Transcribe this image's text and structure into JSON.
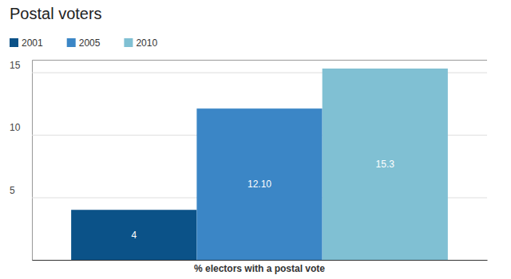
{
  "chart_data": {
    "type": "bar",
    "title": "Postal voters",
    "categories": [
      "% electors with a postal vote"
    ],
    "series": [
      {
        "name": "2001",
        "color": "#0b5288",
        "values": [
          4
        ],
        "value_labels": [
          "4"
        ]
      },
      {
        "name": "2005",
        "color": "#3b86c6",
        "values": [
          12.1
        ],
        "value_labels": [
          "12.10"
        ]
      },
      {
        "name": "2010",
        "color": "#80c0d3",
        "values": [
          15.3
        ],
        "value_labels": [
          "15.3"
        ]
      }
    ],
    "ylim": [
      0,
      16
    ],
    "yticks": [
      5,
      10,
      15
    ],
    "grid": true,
    "legend": "top-left",
    "data_labels": true
  }
}
